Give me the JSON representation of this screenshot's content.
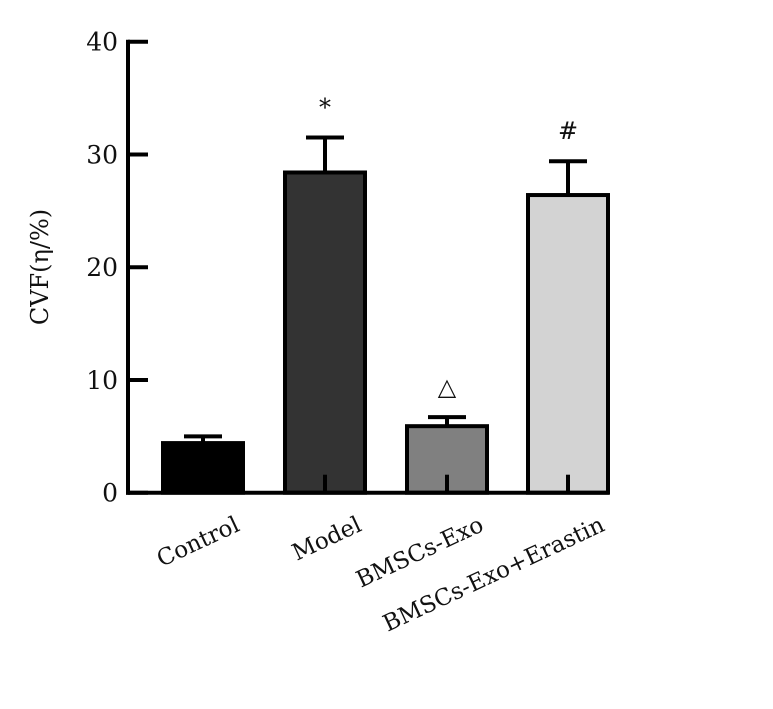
{
  "chart_data": {
    "type": "bar",
    "title": "",
    "xlabel": "",
    "ylabel": "CVF(η/%)",
    "ylim": [
      0,
      40
    ],
    "yticks": [
      0,
      10,
      20,
      30,
      40
    ],
    "grid": false,
    "categories": [
      "Control",
      "Model",
      "BMSCs-Exo",
      "BMSCs-Exo+Erastin"
    ],
    "values": [
      4.4,
      28.4,
      5.9,
      26.4
    ],
    "errors": [
      0.6,
      3.1,
      0.8,
      3.0
    ],
    "annotations": [
      "",
      "*",
      "△",
      "#"
    ],
    "colors": [
      "#000000",
      "#333333",
      "#808080",
      "#d3d3d3"
    ]
  }
}
